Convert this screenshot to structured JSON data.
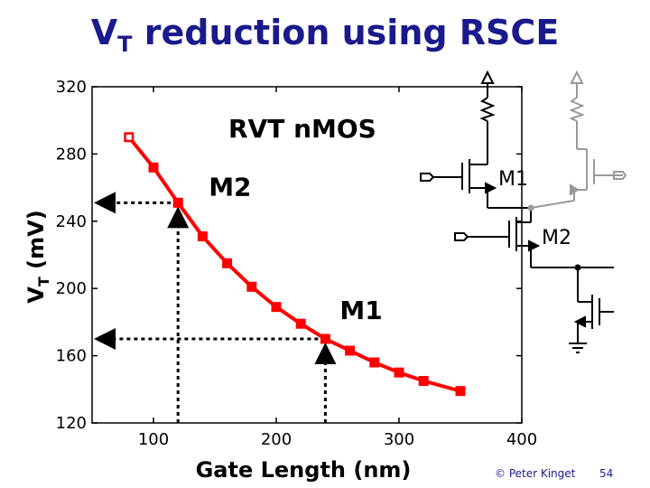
{
  "title": {
    "main": "V",
    "sub": "T",
    "rest": " reduction using RSCE"
  },
  "chart_data": {
    "type": "line",
    "title": "RVT nMOS",
    "xlabel": "Gate Length (nm)",
    "ylabel_main": "V",
    "ylabel_sub": "T",
    "ylabel_rest": " (mV)",
    "xlim": [
      50,
      400
    ],
    "ylim": [
      120,
      320
    ],
    "xticks": [
      100,
      200,
      300,
      400
    ],
    "yticks": [
      120,
      160,
      200,
      240,
      280,
      320
    ],
    "grid": false,
    "line_color": "#ff0000",
    "series": [
      {
        "x": [
          80,
          100,
          120,
          140,
          160,
          180,
          200,
          220,
          240,
          260,
          280,
          300,
          320,
          350
        ],
        "values": [
          290,
          272,
          251,
          231,
          215,
          201,
          189,
          179,
          170,
          163,
          156,
          150,
          145,
          139
        ]
      }
    ],
    "annotations": [
      {
        "text": "M2",
        "x": 120,
        "y": 251
      },
      {
        "text": "M1",
        "x": 240,
        "y": 170
      }
    ]
  },
  "circuit": {
    "labels": [
      "M1",
      "M2"
    ],
    "black": "#000000",
    "gray": "#999999"
  },
  "footer": {
    "copyright": "© Peter Kinget",
    "page": "54"
  }
}
